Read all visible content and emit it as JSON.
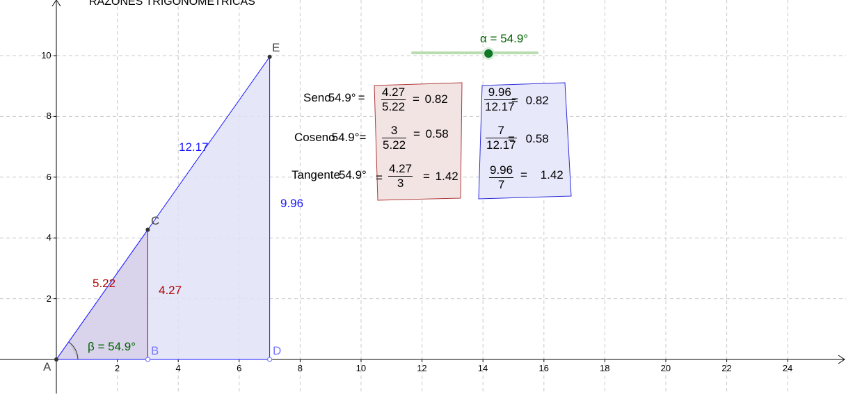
{
  "title": "RAZONES TRIGONOMÉTRICAS",
  "axes": {
    "x_ticks": [
      "2",
      "4",
      "6",
      "8",
      "10",
      "12",
      "14",
      "16",
      "18",
      "20",
      "22",
      "24"
    ],
    "y_ticks": [
      "2",
      "4",
      "6",
      "8",
      "10"
    ]
  },
  "points": {
    "A": "A",
    "B": "B",
    "C": "C",
    "D": "D",
    "E": "E"
  },
  "segment_labels": {
    "AE": "12.17",
    "DE": "9.96",
    "AC": "5.22",
    "BC": "4.27"
  },
  "angle_beta": "β = 54.9°",
  "slider": {
    "label": "α = 54.9°",
    "value": 54.9,
    "min": 0,
    "max": 90
  },
  "red_box": {
    "seno": {
      "prefix": "Seno",
      "angle": "54.9°",
      "eq": "=",
      "num": "4.27",
      "den": "5.22",
      "eq2": "=",
      "result": "0.82"
    },
    "coseno": {
      "prefix": "Coseno",
      "angle": "54.9°",
      "eq": "=",
      "num": "3",
      "den": "5.22",
      "eq2": "=",
      "result": "0.58"
    },
    "tangente": {
      "prefix": "Tangente",
      "angle": "54.9°",
      "eq": "=",
      "num": "4.27",
      "den": "3",
      "eq2": "=",
      "result": "1.42"
    }
  },
  "blue_box": {
    "seno": {
      "num": "9.96",
      "den": "12.17",
      "eq": "=",
      "result": "0.82"
    },
    "coseno": {
      "num": "7",
      "den": "12.17",
      "eq": "=",
      "result": "0.58"
    },
    "tangente": {
      "num": "9.96",
      "den": "7",
      "eq": "=",
      "result": "1.42"
    }
  },
  "colors": {
    "triangle_stroke": "#1a1aff",
    "triangle_fill": "#e2e2f8",
    "small_triangle_fill": "#d8d0ea",
    "red_text": "#b00000",
    "blue_text": "#0000cc",
    "green_text": "#006400",
    "red_box_fill": "#f3e4e4",
    "red_box_stroke": "#b03a3a",
    "blue_box_fill": "#e8e8fb",
    "blue_box_stroke": "#2c2cd8",
    "point_b_d": "#7a7aff",
    "slider_track": "#b9dcb0",
    "slider_knob": "#0f7a1e"
  }
}
